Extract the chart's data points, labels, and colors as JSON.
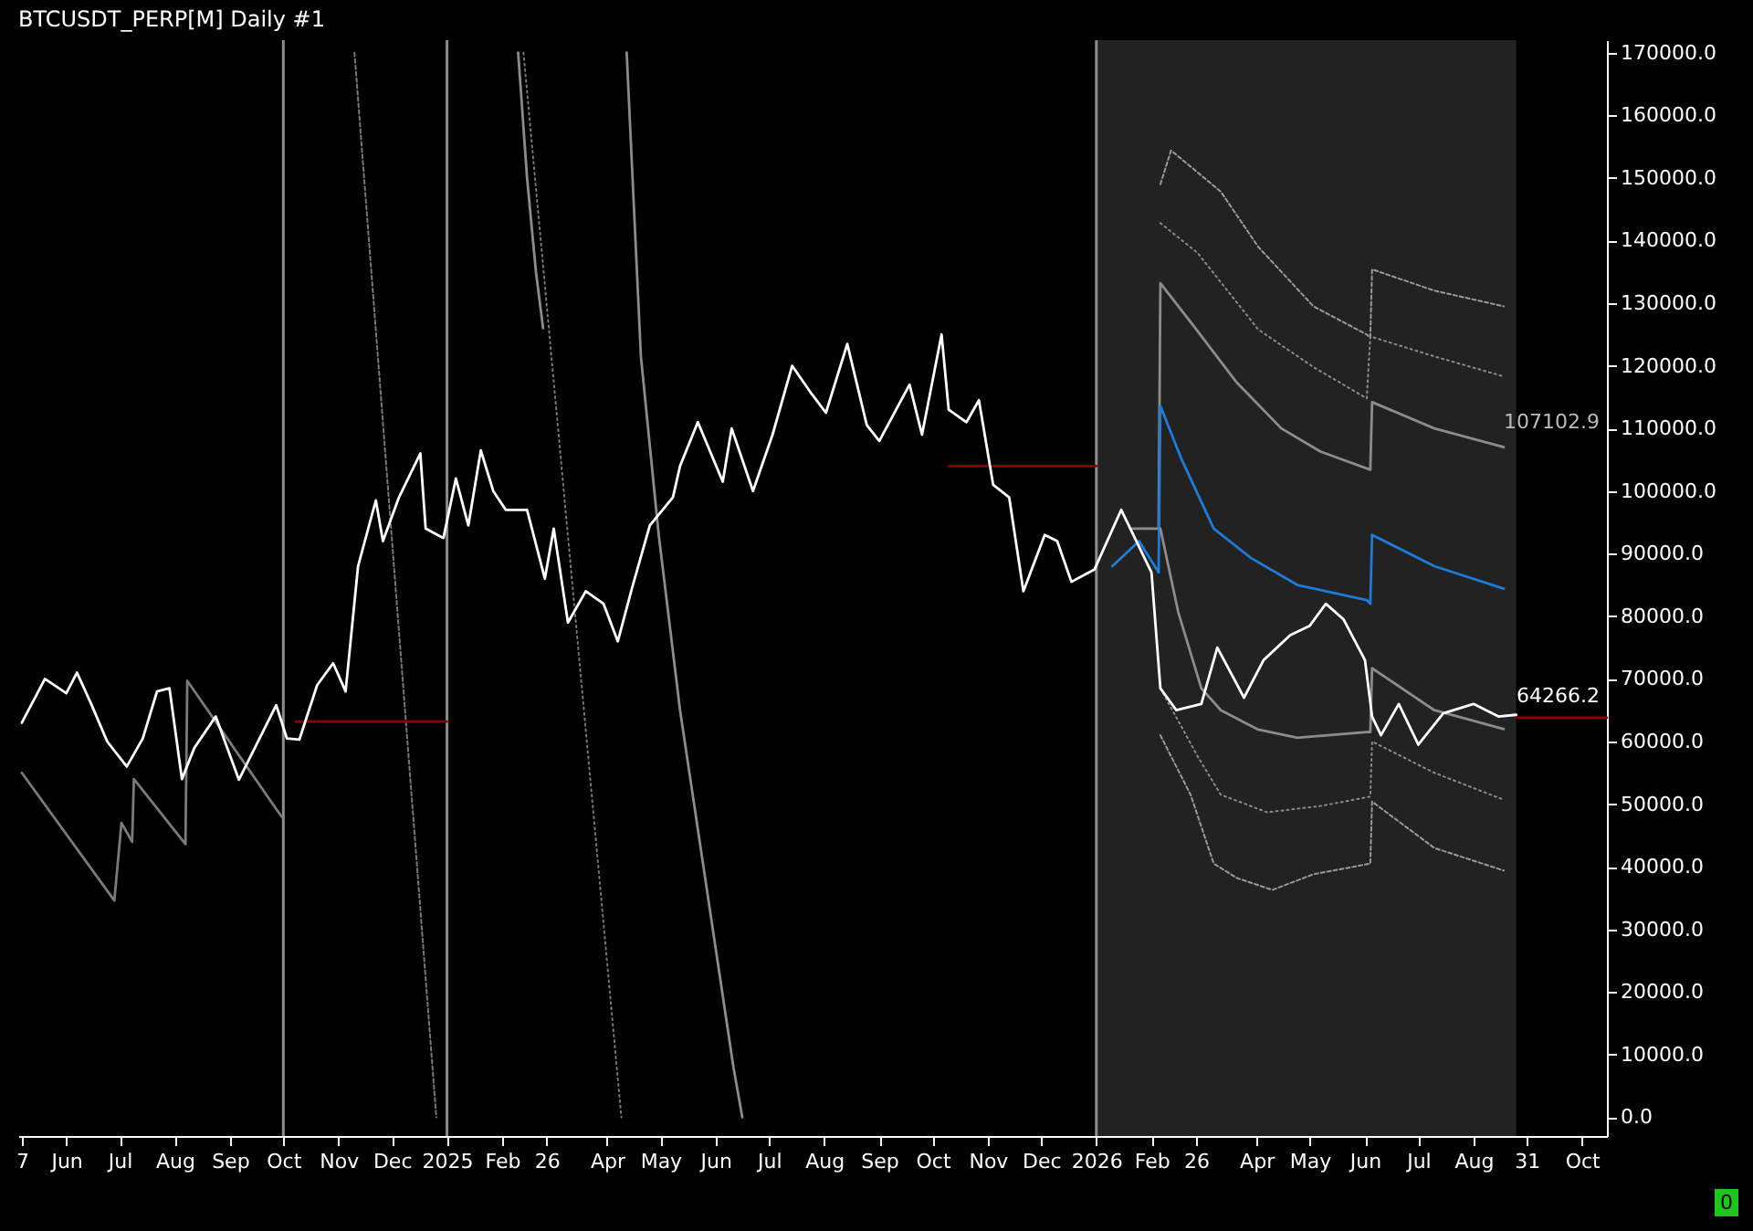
{
  "chart_data": {
    "type": "line",
    "title": "BTCUSDT_PERP[M]  Daily #1",
    "xlim": [
      "2024-05-05",
      "2026-10-15"
    ],
    "ylim": [
      -3000,
      172000
    ],
    "xticks": [
      {
        "value": "2024-05-07",
        "label": "7"
      },
      {
        "value": "2024-06-01",
        "label": "Jun"
      },
      {
        "value": "2024-07-01",
        "label": "Jul"
      },
      {
        "value": "2024-08-01",
        "label": "Aug"
      },
      {
        "value": "2024-09-01",
        "label": "Sep"
      },
      {
        "value": "2024-10-01",
        "label": "Oct"
      },
      {
        "value": "2024-11-01",
        "label": "Nov"
      },
      {
        "value": "2024-12-01",
        "label": "Dec"
      },
      {
        "value": "2025-01-01",
        "label": "2025"
      },
      {
        "value": "2025-02-01",
        "label": "Feb"
      },
      {
        "value": "2025-02-26",
        "label": "26"
      },
      {
        "value": "2025-04-01",
        "label": "Apr"
      },
      {
        "value": "2025-05-01",
        "label": "May"
      },
      {
        "value": "2025-06-01",
        "label": "Jun"
      },
      {
        "value": "2025-07-01",
        "label": "Jul"
      },
      {
        "value": "2025-08-01",
        "label": "Aug"
      },
      {
        "value": "2025-09-01",
        "label": "Sep"
      },
      {
        "value": "2025-10-01",
        "label": "Oct"
      },
      {
        "value": "2025-11-01",
        "label": "Nov"
      },
      {
        "value": "2025-12-01",
        "label": "Dec"
      },
      {
        "value": "2026-01-01",
        "label": "2026"
      },
      {
        "value": "2026-02-01",
        "label": "Feb"
      },
      {
        "value": "2026-02-26",
        "label": "26"
      },
      {
        "value": "2026-04-01",
        "label": "Apr"
      },
      {
        "value": "2026-05-01",
        "label": "May"
      },
      {
        "value": "2026-06-01",
        "label": "Jun"
      },
      {
        "value": "2026-07-01",
        "label": "Jul"
      },
      {
        "value": "2026-08-01",
        "label": "Aug"
      },
      {
        "value": "2026-08-31",
        "label": "31"
      },
      {
        "value": "2026-10-01",
        "label": "Oct"
      }
    ],
    "yticks": [
      {
        "value": 0,
        "label": "0.0"
      },
      {
        "value": 10000,
        "label": "10000.0"
      },
      {
        "value": 20000,
        "label": "20000.0"
      },
      {
        "value": 30000,
        "label": "30000.0"
      },
      {
        "value": 40000,
        "label": "40000.0"
      },
      {
        "value": 50000,
        "label": "50000.0"
      },
      {
        "value": 60000,
        "label": "60000.0"
      },
      {
        "value": 70000,
        "label": "70000.0"
      },
      {
        "value": 80000,
        "label": "80000.0"
      },
      {
        "value": 90000,
        "label": "90000.0"
      },
      {
        "value": 100000,
        "label": "100000.0"
      },
      {
        "value": 110000,
        "label": "110000.0"
      },
      {
        "value": 120000,
        "label": "120000.0"
      },
      {
        "value": 130000,
        "label": "130000.0"
      },
      {
        "value": 140000,
        "label": "140000.0"
      },
      {
        "value": 150000,
        "label": "150000.0"
      },
      {
        "value": 160000,
        "label": "160000.0"
      },
      {
        "value": 170000,
        "label": "170000.0"
      }
    ],
    "grid": false,
    "bands": [
      {
        "axis": "x",
        "from": "2026-01-01",
        "to": "2026-08-25",
        "color": "#222222"
      }
    ],
    "ref_lines": [
      {
        "axis": "x",
        "value": "2024-10-01",
        "color": "#8c8c8c"
      },
      {
        "axis": "x",
        "value": "2025-01-01",
        "color": "#8c8c8c"
      },
      {
        "axis": "x",
        "value": "2026-01-01",
        "color": "#8c8c8c"
      }
    ],
    "series": [
      {
        "color": "#7a7a7a",
        "line_style": "solid",
        "x": [
          "2024-05-07",
          "2024-06-28",
          "2024-07-02",
          "2024-07-08",
          "2024-07-09",
          "2024-08-07",
          "2024-08-08",
          "2024-09-30"
        ],
        "values": [
          55000,
          34600,
          47000,
          44000,
          54000,
          43600,
          69700,
          48000
        ]
      },
      {
        "color": "#8c8c8c",
        "line_style": "solid",
        "x": [
          "2025-04-12",
          "2025-04-20",
          "2025-04-30",
          "2025-05-12",
          "2025-05-27",
          "2025-06-11",
          "2025-06-16"
        ],
        "values": [
          170000,
          121500,
          93000,
          65000,
          36500,
          8000,
          0
        ]
      },
      {
        "color": "#8c8c8c",
        "line_style": "solid",
        "x": [
          "2025-02-10",
          "2025-02-15",
          "2025-02-20",
          "2025-02-24"
        ],
        "values": [
          170000,
          150000,
          135000,
          126000
        ]
      },
      {
        "color": "#777777",
        "line_style": "dashed",
        "x": [
          "2024-11-10",
          "2024-12-26"
        ],
        "values": [
          170000,
          0
        ]
      },
      {
        "color": "#777777",
        "line_style": "dotted",
        "x": [
          "2025-02-13",
          "2025-04-09"
        ],
        "values": [
          170000,
          0
        ]
      },
      {
        "color": "#9a9a9a",
        "line_style": "dashed",
        "x": [
          "2026-02-06",
          "2026-02-12",
          "2026-03-12",
          "2026-04-02",
          "2026-05-03",
          "2026-06-02",
          "2026-06-04",
          "2026-06-05",
          "2026-07-10",
          "2026-08-18"
        ],
        "values": [
          149000,
          154400,
          147800,
          139000,
          129500,
          125000,
          124500,
          135400,
          132000,
          129500
        ]
      },
      {
        "color": "#8a8a8a",
        "line_style": "dotted",
        "x": [
          "2026-02-06",
          "2026-02-27",
          "2026-04-02",
          "2026-05-03",
          "2026-06-02",
          "2026-06-04",
          "2026-07-10",
          "2026-08-18"
        ],
        "values": [
          142800,
          138000,
          125800,
          119800,
          114800,
          124700,
          121500,
          118300
        ]
      },
      {
        "color": "#8c8c8c",
        "line_style": "solid",
        "x": [
          "2026-01-20",
          "2026-02-05",
          "2026-02-06",
          "2026-02-23",
          "2026-03-21",
          "2026-04-15",
          "2026-05-07",
          "2026-06-04",
          "2026-06-05",
          "2026-07-10",
          "2026-08-18"
        ],
        "values": [
          94000,
          94000,
          133200,
          127000,
          117300,
          110000,
          106300,
          103400,
          114200,
          110000,
          107000
        ]
      },
      {
        "color": "#1e7bd8",
        "line_style": "solid",
        "x": [
          "2026-01-10",
          "2026-01-25",
          "2026-02-05",
          "2026-02-06",
          "2026-02-18",
          "2026-03-08",
          "2026-03-29",
          "2026-04-24",
          "2026-06-02",
          "2026-06-04",
          "2026-06-05",
          "2026-07-10",
          "2026-08-18"
        ],
        "values": [
          88000,
          92000,
          87000,
          113600,
          105000,
          94000,
          89300,
          85000,
          82600,
          82000,
          93000,
          88000,
          84400
        ]
      },
      {
        "color": "#8c8c8c",
        "line_style": "solid",
        "x": [
          "2026-02-06",
          "2026-02-16",
          "2026-03-01",
          "2026-03-12",
          "2026-04-02",
          "2026-04-24",
          "2026-06-02",
          "2026-06-04",
          "2026-06-05",
          "2026-07-10",
          "2026-08-18"
        ],
        "values": [
          94000,
          80700,
          68500,
          65000,
          61900,
          60600,
          61500,
          61500,
          71700,
          65000,
          62000
        ]
      },
      {
        "color": "#8a8a8a",
        "line_style": "dotted",
        "x": [
          "2026-02-06",
          "2026-02-27",
          "2026-03-12",
          "2026-04-07",
          "2026-05-07",
          "2026-06-04",
          "2026-06-05",
          "2026-07-10",
          "2026-08-18"
        ],
        "values": [
          68500,
          57600,
          51500,
          48700,
          49700,
          51200,
          60000,
          55000,
          50700
        ]
      },
      {
        "color": "#9a9a9a",
        "line_style": "dashed",
        "x": [
          "2026-02-06",
          "2026-02-23",
          "2026-03-08",
          "2026-03-21",
          "2026-04-10",
          "2026-05-03",
          "2026-06-04",
          "2026-06-05",
          "2026-07-10",
          "2026-08-18"
        ],
        "values": [
          61000,
          51500,
          40500,
          38200,
          36300,
          38800,
          40500,
          50400,
          43000,
          39400
        ]
      },
      {
        "color": "#8b0000",
        "line_style": "solid",
        "x": [
          "2024-10-08",
          "2025-01-01"
        ],
        "values": [
          63200,
          63200
        ]
      },
      {
        "color": "#8b0000",
        "line_style": "solid",
        "x": [
          "2025-10-10",
          "2026-01-01"
        ],
        "values": [
          104000,
          104000
        ]
      },
      {
        "color": "#8b0000",
        "line_style": "solid",
        "x": [
          "2026-08-25",
          "2026-10-15"
        ],
        "values": [
          63800,
          63800
        ]
      },
      {
        "color": "#ffffff",
        "line_style": "solid",
        "x": [
          "2024-05-07",
          "2024-05-20",
          "2024-06-01",
          "2024-06-07",
          "2024-06-15",
          "2024-06-24",
          "2024-07-05",
          "2024-07-14",
          "2024-07-22",
          "2024-07-29",
          "2024-08-05",
          "2024-08-12",
          "2024-08-24",
          "2024-09-06",
          "2024-09-15",
          "2024-09-27",
          "2024-10-03",
          "2024-10-10",
          "2024-10-20",
          "2024-10-29",
          "2024-11-05",
          "2024-11-12",
          "2024-11-22",
          "2024-11-26",
          "2024-12-05",
          "2024-12-17",
          "2024-12-20",
          "2024-12-30",
          "2025-01-06",
          "2025-01-13",
          "2025-01-20",
          "2025-01-27",
          "2025-02-03",
          "2025-02-15",
          "2025-02-25",
          "2025-03-02",
          "2025-03-10",
          "2025-03-20",
          "2025-03-30",
          "2025-04-07",
          "2025-04-15",
          "2025-04-25",
          "2025-05-08",
          "2025-05-12",
          "2025-05-22",
          "2025-06-05",
          "2025-06-10",
          "2025-06-22",
          "2025-07-03",
          "2025-07-14",
          "2025-07-25",
          "2025-08-02",
          "2025-08-14",
          "2025-08-25",
          "2025-09-01",
          "2025-09-18",
          "2025-09-25",
          "2025-10-06",
          "2025-10-10",
          "2025-10-20",
          "2025-10-27",
          "2025-11-04",
          "2025-11-13",
          "2025-11-21",
          "2025-12-03",
          "2025-12-10",
          "2025-12-18",
          "2025-12-31",
          "2026-01-15",
          "2026-02-01",
          "2026-02-06",
          "2026-02-15",
          "2026-03-01",
          "2026-03-10",
          "2026-03-25",
          "2026-04-05",
          "2026-04-20",
          "2026-05-01",
          "2026-05-10",
          "2026-05-20",
          "2026-06-01",
          "2026-06-05",
          "2026-06-10",
          "2026-06-20",
          "2026-07-01",
          "2026-07-15",
          "2026-08-01",
          "2026-08-15",
          "2026-08-25"
        ],
        "values": [
          63000,
          70000,
          67700,
          71000,
          66000,
          60000,
          56000,
          60500,
          68000,
          68500,
          54000,
          59000,
          64000,
          53900,
          59000,
          65800,
          60500,
          60300,
          69000,
          72500,
          68000,
          88000,
          98500,
          92000,
          99000,
          106000,
          94000,
          92500,
          102000,
          94500,
          106500,
          100000,
          97000,
          97000,
          86000,
          94000,
          79000,
          84000,
          82000,
          76000,
          84500,
          94500,
          99000,
          104000,
          111000,
          101500,
          110000,
          100000,
          109000,
          120000,
          115500,
          112500,
          123500,
          110500,
          108000,
          117000,
          109000,
          125000,
          113000,
          111000,
          114500,
          101000,
          99000,
          84000,
          93000,
          92000,
          85500,
          87500,
          97000,
          87000,
          68500,
          65000,
          66000,
          75000,
          67000,
          73000,
          77000,
          78500,
          82000,
          79500,
          73000,
          64000,
          61000,
          66000,
          59500,
          64500,
          66000,
          64000,
          64266.2
        ]
      }
    ],
    "annotations": [
      {
        "text": "107102.9",
        "x": "2026-08-18",
        "y": 107102.9
      },
      {
        "text": "64266.2",
        "x": "2026-08-25",
        "y": 64266.2
      },
      "0"
    ]
  }
}
